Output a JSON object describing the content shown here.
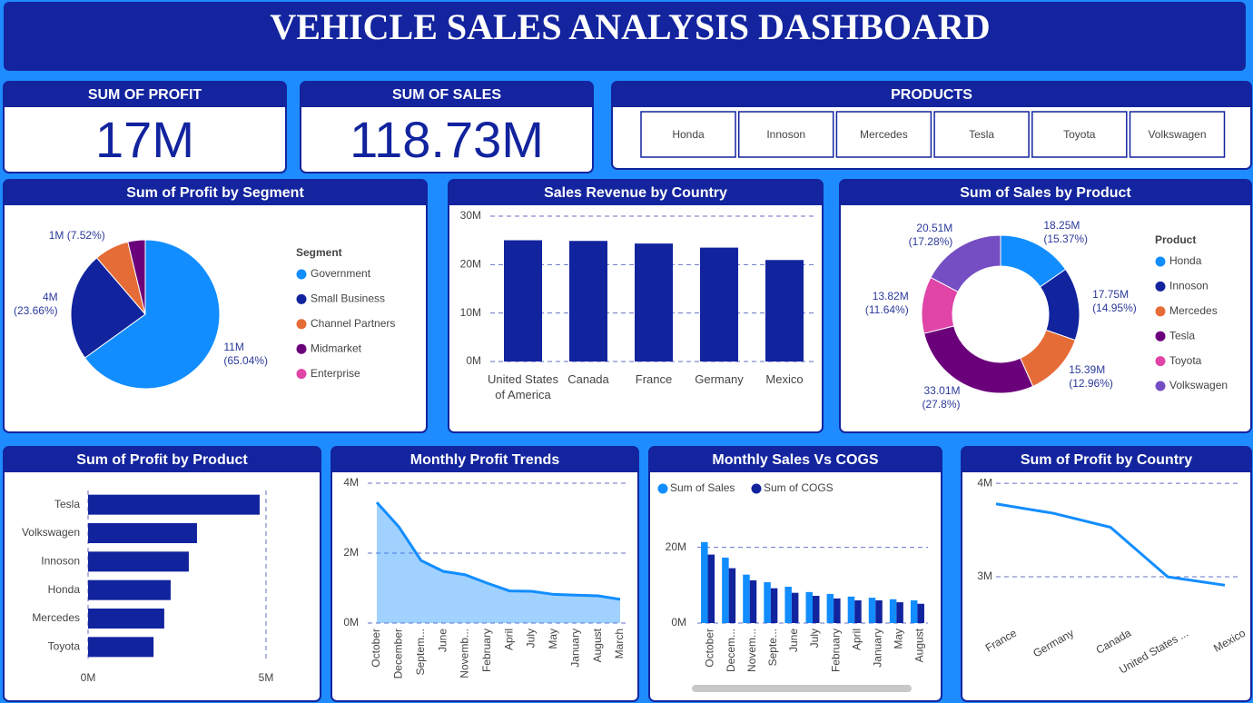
{
  "title": "VEHICLE SALES ANALYSIS DASHBOARD",
  "kpis": [
    {
      "label": "SUM OF PROFIT",
      "value": "17M"
    },
    {
      "label": "SUM OF SALES",
      "value": "118.73M"
    }
  ],
  "products": {
    "title": "PRODUCTS",
    "items": [
      "Honda",
      "Innoson",
      "Mercedes",
      "Tesla",
      "Toyota",
      "Volkswagen"
    ]
  },
  "chart_data": [
    {
      "type": "pie",
      "title": "Sum of Profit by Segment",
      "legend_title": "Segment",
      "categories": [
        "Government",
        "Small Business",
        "Channel Partners",
        "Midmarket",
        "Enterprise"
      ],
      "values": [
        11.39,
        4.14,
        1.32,
        0.66,
        null
      ],
      "value_labels": [
        "11M (65.04%)",
        "4M (23.66%)",
        "1M (7.52%)",
        null,
        null
      ],
      "colors": [
        "#118dff",
        "#12239e",
        "#e66c37",
        "#6b007b",
        "#e044a7"
      ]
    },
    {
      "type": "bar",
      "title": "Sales Revenue by Country",
      "categories": [
        "United States of America",
        "Canada",
        "France",
        "Germany",
        "Mexico"
      ],
      "values": [
        25.03,
        24.89,
        24.35,
        23.51,
        20.95
      ],
      "color": "#12239e",
      "ylim": [
        0,
        30
      ],
      "yticks": [
        {
          "value": 0,
          "label": "0M"
        },
        {
          "value": 10,
          "label": "10M"
        },
        {
          "value": 20,
          "label": "20M"
        },
        {
          "value": 30,
          "label": "30M"
        }
      ],
      "grid": true
    },
    {
      "type": "donut",
      "title": "Sum of Sales by Product",
      "legend_title": "Product",
      "categories": [
        "Honda",
        "Innoson",
        "Mercedes",
        "Tesla",
        "Toyota",
        "Volkswagen"
      ],
      "values": [
        18.25,
        17.75,
        15.39,
        33.01,
        13.82,
        20.51
      ],
      "value_labels": [
        "18.25M (15.37%)",
        "17.75M (14.95%)",
        "15.39M (12.96%)",
        "33.01M (27.8%)",
        "13.82M (11.64%)",
        "20.51M (17.28%)"
      ],
      "colors": [
        "#118dff",
        "#12239e",
        "#e66c37",
        "#6b007b",
        "#e044a7",
        "#744ec2"
      ]
    },
    {
      "type": "hbar",
      "title": "Sum of Profit by Product",
      "categories": [
        "Tesla",
        "Volkswagen",
        "Innoson",
        "Honda",
        "Mercedes",
        "Toyota"
      ],
      "values": [
        4.82,
        3.06,
        2.83,
        2.32,
        2.14,
        1.84
      ],
      "color": "#12239e",
      "xlim": [
        0,
        5
      ],
      "xticks": [
        {
          "value": 0,
          "label": "0M"
        },
        {
          "value": 5,
          "label": "5M"
        }
      ],
      "grid": true
    },
    {
      "type": "area",
      "title": "Monthly Profit Trends",
      "categories": [
        "October",
        "December",
        "Septem...",
        "June",
        "Novemb...",
        "February",
        "April",
        "July",
        "May",
        "January",
        "August",
        "March"
      ],
      "values": [
        3.45,
        2.75,
        1.79,
        1.48,
        1.38,
        1.14,
        0.92,
        0.91,
        0.82,
        0.8,
        0.78,
        0.68
      ],
      "color": "#118dff",
      "ylim": [
        0,
        4
      ],
      "yticks": [
        {
          "value": 0,
          "label": "0M"
        },
        {
          "value": 2,
          "label": "2M"
        },
        {
          "value": 4,
          "label": "4M"
        }
      ],
      "grid": true
    },
    {
      "type": "grouped_bar",
      "title": "Monthly Sales Vs COGS",
      "categories": [
        "October",
        "Decem...",
        "Novem...",
        "Septe...",
        "June",
        "July",
        "February",
        "April",
        "January",
        "May",
        "August"
      ],
      "series": [
        {
          "name": "Sum of  Sales",
          "color": "#118dff",
          "values": [
            21.4,
            17.3,
            12.8,
            10.8,
            9.6,
            8.2,
            7.7,
            7.0,
            6.7,
            6.3,
            6.0
          ]
        },
        {
          "name": "Sum of  COGS",
          "color": "#12239e",
          "values": [
            18.1,
            14.5,
            11.3,
            9.2,
            8.0,
            7.2,
            6.5,
            6.0,
            6.0,
            5.5,
            5.1
          ]
        }
      ],
      "ylim": [
        0,
        24
      ],
      "yticks": [
        {
          "value": 0,
          "label": "0M"
        },
        {
          "value": 20,
          "label": "20M"
        }
      ],
      "grid": true
    },
    {
      "type": "line",
      "title": "Sum of Profit by Country",
      "categories": [
        "France",
        "Germany",
        "Canada",
        "United States ...",
        "Mexico"
      ],
      "values": [
        3.78,
        3.68,
        3.53,
        3.0,
        2.91
      ],
      "color": "#118dff",
      "ylim": [
        2.5,
        4.05
      ],
      "yticks": [
        {
          "value": 3,
          "label": "3M"
        },
        {
          "value": 4,
          "label": "4M"
        }
      ],
      "grid": true
    }
  ]
}
